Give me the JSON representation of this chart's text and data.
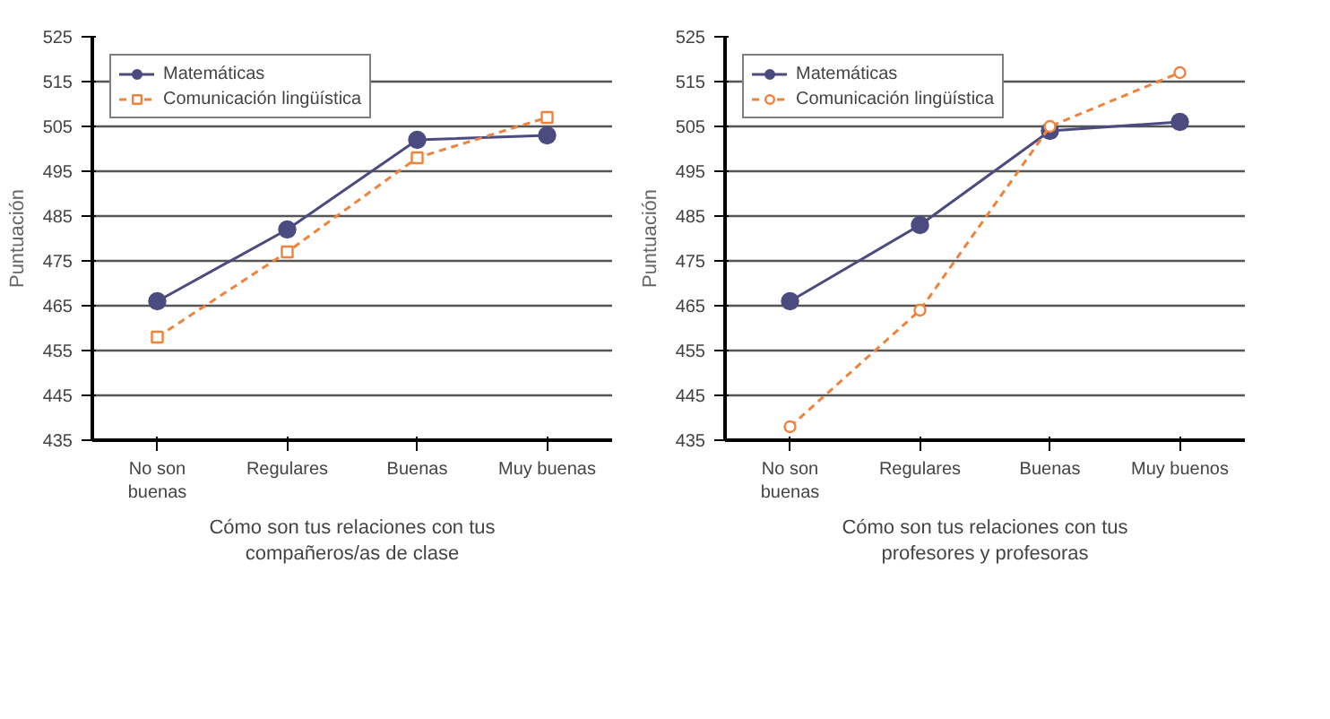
{
  "chart_data": [
    {
      "type": "line",
      "xlabel": "Cómo son tus relaciones con tus\ncompañeros/as de clase",
      "ylabel": "Puntuación",
      "categories": [
        "No son\nbuenas",
        "Regulares",
        "Buenas",
        "Muy buenas"
      ],
      "ylim": [
        435,
        525
      ],
      "yticks": [
        435,
        445,
        455,
        465,
        475,
        485,
        495,
        505,
        515,
        525
      ],
      "grid": "y",
      "legend": "top",
      "series": [
        {
          "name": "Matemáticas",
          "color": "#4b4b80",
          "values": [
            466,
            482,
            502,
            503
          ],
          "marker": "circle",
          "line_style": "solid"
        },
        {
          "name": "Comunicación lingüística",
          "color": "#f0823c",
          "values": [
            458,
            477,
            498,
            507
          ],
          "marker": "square",
          "line_style": "dashed"
        }
      ]
    },
    {
      "type": "line",
      "xlabel": "Cómo son tus relaciones con tus\nprofesores y profesoras",
      "ylabel": "Puntuación",
      "categories": [
        "No son\nbuenas",
        "Regulares",
        "Buenas",
        "Muy buenos"
      ],
      "ylim": [
        435,
        525
      ],
      "yticks": [
        435,
        445,
        455,
        465,
        475,
        485,
        495,
        505,
        515,
        525
      ],
      "grid": "y",
      "legend": "top",
      "series": [
        {
          "name": "Matemáticas",
          "color": "#4b4b80",
          "values": [
            466,
            483,
            504,
            506
          ],
          "marker": "circle",
          "line_style": "solid"
        },
        {
          "name": "Comunicación lingüística",
          "color": "#f0823c",
          "values": [
            438,
            464,
            505,
            517
          ],
          "marker": "circle",
          "line_style": "dashed"
        }
      ]
    }
  ]
}
